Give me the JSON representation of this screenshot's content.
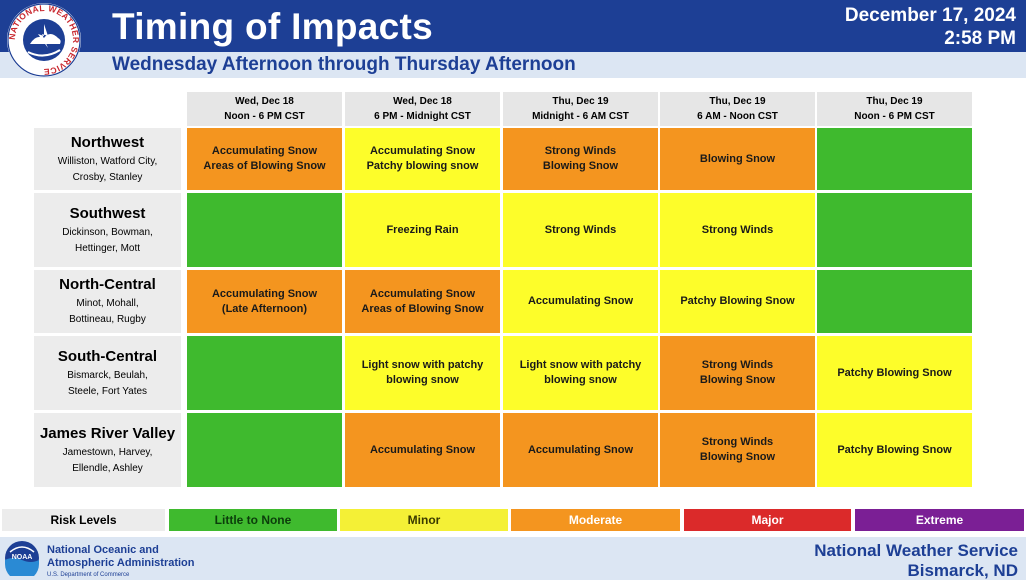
{
  "header": {
    "title": "Timing of Impacts",
    "subtitle": "Wednesday Afternoon through Thursday Afternoon",
    "date": "December 17, 2024",
    "time": "2:58 PM",
    "logo_text": "NATIONAL WEATHER SERVICE"
  },
  "columns": [
    {
      "day": "Wed, Dec 18",
      "time": "Noon - 6 PM CST"
    },
    {
      "day": "Wed, Dec 18",
      "time": "6 PM - Midnight CST"
    },
    {
      "day": "Thu, Dec 19",
      "time": "Midnight - 6 AM CST"
    },
    {
      "day": "Thu, Dec 19",
      "time": "6 AM - Noon CST"
    },
    {
      "day": "Thu, Dec 19",
      "time": "Noon - 6 PM CST"
    }
  ],
  "regions": [
    {
      "name": "Northwest",
      "towns_1": "Williston, Watford City,",
      "towns_2": "Crosby, Stanley",
      "cells": [
        {
          "level": "moderate",
          "line1": "Accumulating Snow",
          "line2": "Areas of Blowing Snow"
        },
        {
          "level": "minor",
          "line1": "Accumulating Snow",
          "line2": "Patchy blowing snow"
        },
        {
          "level": "moderate",
          "line1": "Strong Winds",
          "line2": "Blowing Snow"
        },
        {
          "level": "moderate",
          "line1": "Blowing Snow",
          "line2": ""
        },
        {
          "level": "none",
          "line1": "",
          "line2": ""
        }
      ]
    },
    {
      "name": "Southwest",
      "towns_1": "Dickinson, Bowman,",
      "towns_2": "Hettinger, Mott",
      "cells": [
        {
          "level": "none",
          "line1": "",
          "line2": ""
        },
        {
          "level": "minor",
          "line1": "Freezing Rain",
          "line2": ""
        },
        {
          "level": "minor",
          "line1": "Strong Winds",
          "line2": ""
        },
        {
          "level": "minor",
          "line1": "Strong Winds",
          "line2": ""
        },
        {
          "level": "none",
          "line1": "",
          "line2": ""
        }
      ]
    },
    {
      "name": "North-Central",
      "towns_1": "Minot, Mohall,",
      "towns_2": "Bottineau, Rugby",
      "cells": [
        {
          "level": "moderate",
          "line1": "Accumulating Snow",
          "line2": "(Late Afternoon)"
        },
        {
          "level": "moderate",
          "line1": "Accumulating Snow",
          "line2": "Areas of Blowing Snow"
        },
        {
          "level": "minor",
          "line1": "Accumulating Snow",
          "line2": ""
        },
        {
          "level": "minor",
          "line1": "Patchy Blowing Snow",
          "line2": ""
        },
        {
          "level": "none",
          "line1": "",
          "line2": ""
        }
      ]
    },
    {
      "name": "South-Central",
      "towns_1": "Bismarck, Beulah,",
      "towns_2": "Steele, Fort Yates",
      "cells": [
        {
          "level": "none",
          "line1": "",
          "line2": ""
        },
        {
          "level": "minor",
          "line1": "Light snow with patchy",
          "line2": "blowing snow"
        },
        {
          "level": "minor",
          "line1": "Light snow with patchy",
          "line2": "blowing snow"
        },
        {
          "level": "moderate",
          "line1": "Strong Winds",
          "line2": "Blowing Snow"
        },
        {
          "level": "minor",
          "line1": "Patchy Blowing Snow",
          "line2": ""
        }
      ]
    },
    {
      "name": "James River Valley",
      "towns_1": "Jamestown, Harvey,",
      "towns_2": "Ellendle, Ashley",
      "cells": [
        {
          "level": "none",
          "line1": "",
          "line2": ""
        },
        {
          "level": "moderate",
          "line1": "Accumulating Snow",
          "line2": ""
        },
        {
          "level": "moderate",
          "line1": "Accumulating Snow",
          "line2": ""
        },
        {
          "level": "moderate",
          "line1": "Strong Winds",
          "line2": "Blowing Snow"
        },
        {
          "level": "minor",
          "line1": "Patchy Blowing Snow",
          "line2": ""
        }
      ]
    }
  ],
  "legend": {
    "title": "Risk Levels",
    "items": [
      {
        "label": "Little to None",
        "color": "#3fba2e",
        "text_color": "#0b3d0b"
      },
      {
        "label": "Minor",
        "color": "#f4f036",
        "text_color": "#3a3a00"
      },
      {
        "label": "Moderate",
        "color": "#f4951f",
        "text_color": "#ffffff"
      },
      {
        "label": "Major",
        "color": "#db2a2a",
        "text_color": "#ffffff"
      },
      {
        "label": "Extreme",
        "color": "#7b1f95",
        "text_color": "#ffffff"
      }
    ]
  },
  "colors": {
    "none": "#3fba2e",
    "minor": "#fdfd2a",
    "moderate": "#f4951f",
    "header_blue": "#1d3f95"
  },
  "footer": {
    "noaa_line1": "National Oceanic and",
    "noaa_line2": "Atmospheric Administration",
    "noaa_line3": "U.S. Department of Commerce",
    "noaa_logo_text": "NOAA",
    "nws_name": "National Weather Service",
    "nws_office": "Bismarck, ND"
  }
}
